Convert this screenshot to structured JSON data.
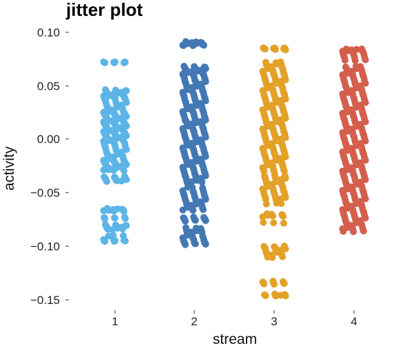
{
  "chart_data": {
    "type": "scatter",
    "subtype": "jitter",
    "title": "jitter plot",
    "xlabel": "stream",
    "ylabel": "activity",
    "categories": [
      "1",
      "2",
      "3",
      "4"
    ],
    "ylim": [
      -0.155,
      0.1
    ],
    "yticks": [
      0.1,
      0.05,
      0.0,
      -0.05,
      -0.1,
      -0.15
    ],
    "ytick_labels": [
      "0.10",
      "0.05",
      "0.00",
      "−0.05",
      "−0.10",
      "−0.15"
    ],
    "grid": false,
    "legend": "none",
    "series": [
      {
        "category": "1",
        "color": "#5DB4E6",
        "values": [
          0.072,
          0.072,
          0.072,
          0.046,
          0.045,
          0.044,
          0.043,
          0.042,
          0.041,
          0.04,
          0.039,
          0.038,
          0.036,
          0.034,
          0.032,
          0.03,
          0.028,
          0.026,
          0.025,
          0.024,
          0.023,
          0.022,
          0.021,
          0.02,
          0.019,
          0.018,
          0.017,
          0.016,
          0.015,
          0.014,
          0.013,
          0.012,
          0.011,
          0.01,
          0.009,
          0.008,
          0.007,
          0.006,
          0.005,
          0.004,
          0.003,
          0.002,
          0.001,
          0.0,
          -0.001,
          -0.002,
          -0.004,
          -0.006,
          -0.008,
          -0.01,
          -0.012,
          -0.014,
          -0.016,
          -0.018,
          -0.02,
          -0.021,
          -0.022,
          -0.023,
          -0.024,
          -0.025,
          -0.026,
          -0.027,
          -0.028,
          -0.029,
          -0.035,
          -0.036,
          -0.037,
          -0.038,
          -0.039,
          -0.065,
          -0.066,
          -0.066,
          -0.067,
          -0.073,
          -0.074,
          -0.08,
          -0.081,
          -0.082,
          -0.083,
          -0.084,
          -0.09,
          -0.094,
          -0.095,
          -0.095
        ]
      },
      {
        "category": "2",
        "color": "#4378B5",
        "values": [
          0.091,
          0.09,
          0.09,
          0.089,
          0.088,
          0.088,
          0.068,
          0.067,
          0.066,
          0.065,
          0.064,
          0.063,
          0.062,
          0.061,
          0.06,
          0.058,
          0.056,
          0.054,
          0.052,
          0.05,
          0.048,
          0.046,
          0.044,
          0.042,
          0.04,
          0.038,
          0.036,
          0.034,
          0.032,
          0.03,
          0.028,
          0.026,
          0.024,
          0.022,
          0.02,
          0.018,
          0.017,
          0.016,
          0.014,
          0.012,
          0.01,
          0.008,
          0.006,
          0.004,
          0.002,
          0.0,
          -0.002,
          -0.004,
          -0.006,
          -0.008,
          -0.01,
          -0.012,
          -0.014,
          -0.016,
          -0.018,
          -0.02,
          -0.022,
          -0.024,
          -0.026,
          -0.028,
          -0.03,
          -0.032,
          -0.034,
          -0.036,
          -0.038,
          -0.04,
          -0.045,
          -0.048,
          -0.05,
          -0.052,
          -0.054,
          -0.056,
          -0.058,
          -0.06,
          -0.062,
          -0.064,
          -0.066,
          -0.073,
          -0.074,
          -0.075,
          -0.076,
          -0.083,
          -0.085,
          -0.087,
          -0.09,
          -0.092,
          -0.094,
          -0.096,
          -0.097,
          -0.098
        ]
      },
      {
        "category": "3",
        "color": "#E3A128",
        "values": [
          0.085,
          0.085,
          0.085,
          0.084,
          0.072,
          0.07,
          0.068,
          0.066,
          0.064,
          0.062,
          0.06,
          0.058,
          0.056,
          0.054,
          0.052,
          0.05,
          0.048,
          0.046,
          0.044,
          0.042,
          0.04,
          0.038,
          0.036,
          0.034,
          0.032,
          0.03,
          0.028,
          0.026,
          0.024,
          0.022,
          0.02,
          0.018,
          0.016,
          0.014,
          0.012,
          0.01,
          0.008,
          0.006,
          0.004,
          0.002,
          0.0,
          -0.002,
          -0.004,
          -0.006,
          -0.008,
          -0.01,
          -0.012,
          -0.014,
          -0.016,
          -0.018,
          -0.02,
          -0.022,
          -0.024,
          -0.026,
          -0.028,
          -0.03,
          -0.034,
          -0.036,
          -0.038,
          -0.04,
          -0.042,
          -0.044,
          -0.046,
          -0.048,
          -0.05,
          -0.052,
          -0.054,
          -0.056,
          -0.06,
          -0.07,
          -0.071,
          -0.072,
          -0.078,
          -0.1,
          -0.101,
          -0.102,
          -0.104,
          -0.106,
          -0.108,
          -0.11,
          -0.133,
          -0.134,
          -0.135,
          -0.145,
          -0.146,
          -0.146
        ]
      },
      {
        "category": "4",
        "color": "#D45F4D",
        "values": [
          0.084,
          0.084,
          0.083,
          0.082,
          0.08,
          0.078,
          0.076,
          0.074,
          0.068,
          0.066,
          0.064,
          0.062,
          0.06,
          0.058,
          0.056,
          0.054,
          0.052,
          0.05,
          0.048,
          0.046,
          0.044,
          0.042,
          0.04,
          0.038,
          0.036,
          0.034,
          0.032,
          0.03,
          0.028,
          0.026,
          0.024,
          0.022,
          0.02,
          0.018,
          0.016,
          0.014,
          0.012,
          0.01,
          0.008,
          0.006,
          0.004,
          0.002,
          0.0,
          -0.002,
          -0.004,
          -0.006,
          -0.008,
          -0.01,
          -0.012,
          -0.014,
          -0.016,
          -0.018,
          -0.02,
          -0.022,
          -0.024,
          -0.026,
          -0.028,
          -0.03,
          -0.032,
          -0.034,
          -0.036,
          -0.038,
          -0.04,
          -0.042,
          -0.044,
          -0.046,
          -0.048,
          -0.05,
          -0.052,
          -0.054,
          -0.056,
          -0.058,
          -0.06,
          -0.062,
          -0.064,
          -0.066,
          -0.068,
          -0.07,
          -0.072,
          -0.074,
          -0.076,
          -0.078,
          -0.08,
          -0.082,
          -0.084,
          -0.086
        ]
      }
    ]
  }
}
